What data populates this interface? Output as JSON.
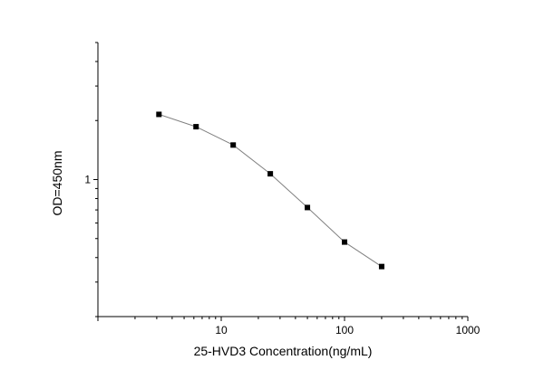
{
  "chart_data": {
    "type": "scatter",
    "title": "",
    "xlabel": "25-HVD3 Concentration(ng/mL)",
    "ylabel": "OD=450nm",
    "x_scale": "log",
    "y_scale": "log",
    "xlim": [
      1,
      1000
    ],
    "ylim": [
      0.2,
      5
    ],
    "x_tick_labels": [
      "10",
      "100",
      "1000"
    ],
    "y_tick_labels": [
      "1"
    ],
    "grid": false,
    "legend": "none",
    "series": [
      {
        "marker": "square",
        "line": "connected",
        "color": "#000000",
        "line_color": "#808080",
        "points": [
          {
            "x": 3.125,
            "y": 2.15
          },
          {
            "x": 6.25,
            "y": 1.86
          },
          {
            "x": 12.5,
            "y": 1.5
          },
          {
            "x": 25,
            "y": 1.07
          },
          {
            "x": 50,
            "y": 0.72
          },
          {
            "x": 100,
            "y": 0.48
          },
          {
            "x": 200,
            "y": 0.36
          }
        ]
      }
    ]
  }
}
